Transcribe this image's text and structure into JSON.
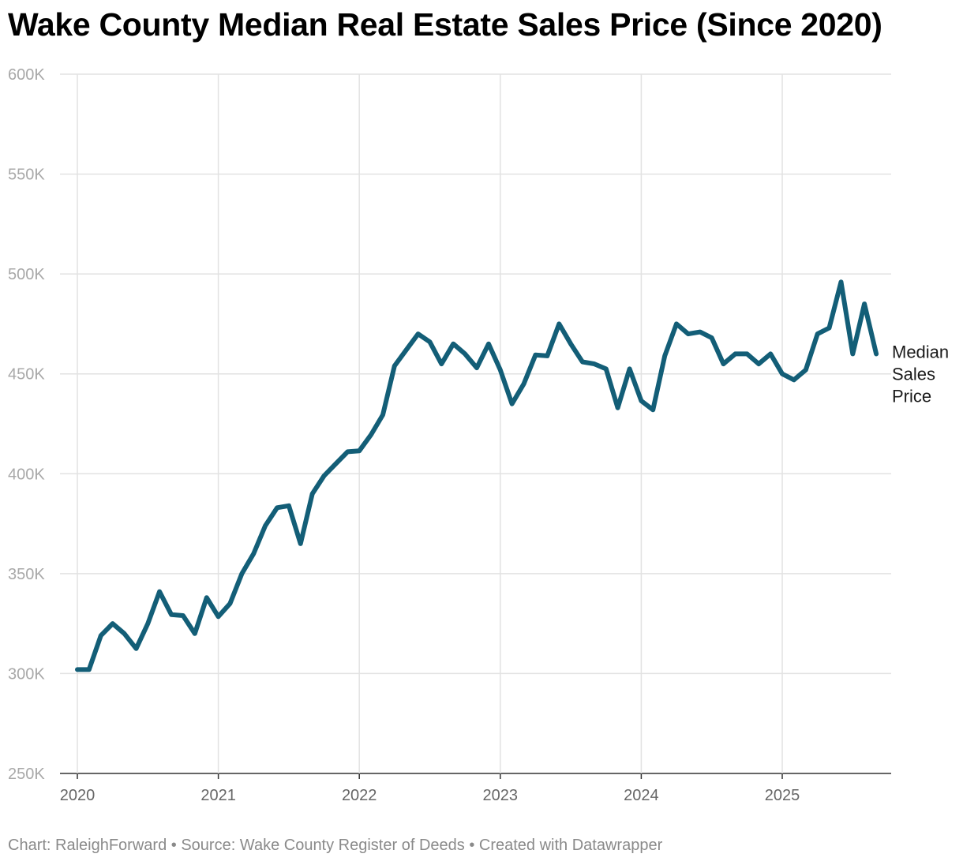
{
  "chart_data": {
    "type": "line",
    "title": "Wake County Median Real Estate Sales Price (Since 2020)",
    "xlabel": "",
    "ylabel": "",
    "ylim": [
      250000,
      600000
    ],
    "xlim": [
      2020.0,
      2025.75
    ],
    "yticks": [
      250000,
      300000,
      350000,
      400000,
      450000,
      500000,
      550000,
      600000
    ],
    "ytick_labels": [
      "250K",
      "300K",
      "350K",
      "400K",
      "450K",
      "500K",
      "550K",
      "600K"
    ],
    "xticks": [
      2020,
      2021,
      2022,
      2023,
      2024,
      2025
    ],
    "xtick_labels": [
      "2020",
      "2021",
      "2022",
      "2023",
      "2024",
      "2025"
    ],
    "grid": true,
    "series": [
      {
        "name": "Median Sales Price",
        "label_lines": [
          "Median",
          "Sales",
          "Price"
        ],
        "color": "#135e77",
        "x": [
          2020.0,
          2020.083,
          2020.167,
          2020.25,
          2020.333,
          2020.417,
          2020.5,
          2020.583,
          2020.667,
          2020.75,
          2020.833,
          2020.917,
          2021.0,
          2021.083,
          2021.167,
          2021.25,
          2021.333,
          2021.417,
          2021.5,
          2021.583,
          2021.667,
          2021.75,
          2021.833,
          2021.917,
          2022.0,
          2022.083,
          2022.167,
          2022.25,
          2022.333,
          2022.417,
          2022.5,
          2022.583,
          2022.667,
          2022.75,
          2022.833,
          2022.917,
          2023.0,
          2023.083,
          2023.167,
          2023.25,
          2023.333,
          2023.417,
          2023.5,
          2023.583,
          2023.667,
          2023.75,
          2023.833,
          2023.917,
          2024.0,
          2024.083,
          2024.167,
          2024.25,
          2024.333,
          2024.417,
          2024.5,
          2024.583,
          2024.667,
          2024.75,
          2024.833,
          2024.917,
          2025.0,
          2025.083,
          2025.167,
          2025.25,
          2025.333,
          2025.417,
          2025.5,
          2025.583,
          2025.667
        ],
        "values": [
          302000,
          302000,
          319000,
          325000,
          320000,
          312500,
          325000,
          341000,
          329500,
          329000,
          320000,
          338000,
          328500,
          335000,
          350000,
          360000,
          374000,
          383000,
          384000,
          365000,
          390000,
          399000,
          405000,
          411000,
          411500,
          419500,
          429500,
          454000,
          462000,
          470000,
          466000,
          455000,
          465000,
          460000,
          453000,
          465000,
          452000,
          435000,
          445000,
          459500,
          459000,
          475000,
          465000,
          456000,
          455000,
          452500,
          433000,
          452500,
          436500,
          432000,
          459000,
          475000,
          470000,
          471000,
          468000,
          455000,
          460000,
          460000,
          455000,
          460000,
          450000,
          447000,
          452000,
          470000,
          473000,
          496000,
          460000,
          485000,
          460000
        ]
      }
    ]
  },
  "footer": {
    "chart_credit": "Chart: RaleighForward",
    "source": "Source: Wake County Register of Deeds",
    "created_with": "Created with Datawrapper",
    "separator": " • "
  }
}
